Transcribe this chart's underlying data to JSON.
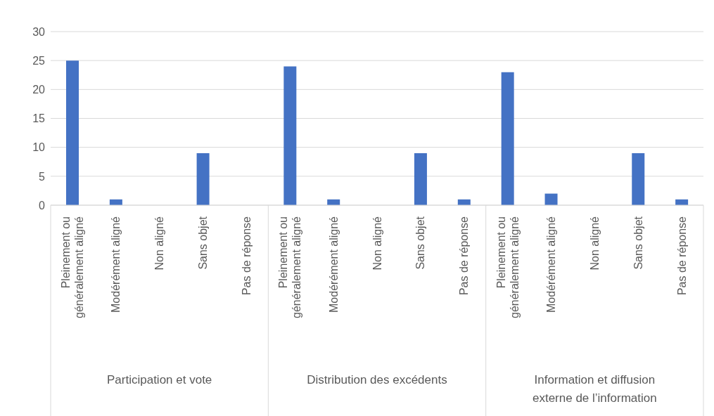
{
  "chart_data": {
    "type": "bar",
    "categories": [
      "Pleinement ou généralement aligné",
      "Modérément aligné",
      "Non aligné",
      "Sans objet",
      "Pas de réponse",
      "Pleinement ou généralement aligné",
      "Modérément aligné",
      "Non aligné",
      "Sans objet",
      "Pas de réponse",
      "Pleinement ou généralement aligné",
      "Modérément aligné",
      "Non aligné",
      "Sans objet",
      "Pas de réponse"
    ],
    "values": [
      25,
      1,
      0,
      9,
      0,
      24,
      1,
      0,
      9,
      1,
      23,
      2,
      0,
      9,
      1
    ],
    "color": "#4472c4",
    "ylim": [
      0,
      30
    ],
    "yticks": [
      0,
      5,
      10,
      15,
      20,
      25,
      30
    ],
    "grid": "y",
    "annotations": [
      "Participation et vote",
      "Distribution des excédents",
      "Information et diffusion externe de l’information"
    ]
  }
}
